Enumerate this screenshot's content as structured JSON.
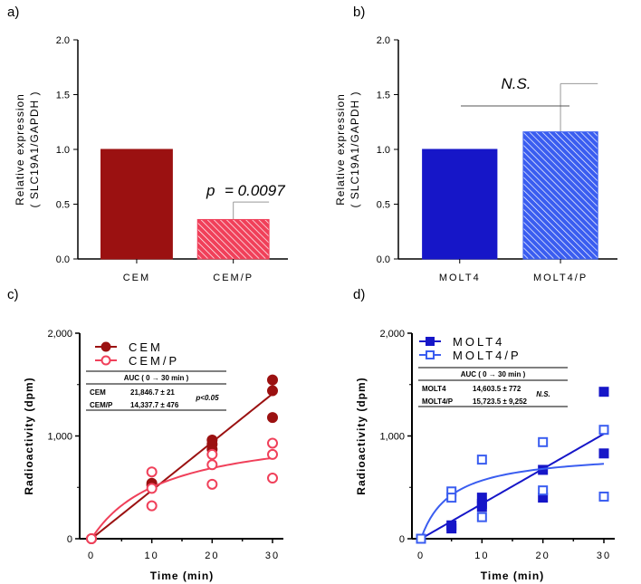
{
  "chart_data": [
    {
      "panel": "a)",
      "type": "bar",
      "categories": [
        "CEM",
        "CEM/P"
      ],
      "values": [
        1.0,
        0.36
      ],
      "errors": [
        0,
        0.52
      ],
      "colors": [
        "#9b1111",
        "#f0405a"
      ],
      "hatched": [
        false,
        true
      ],
      "ylabel": "Relative expression",
      "ylabel2": "( SLC19A1/GAPDH )",
      "ylim": [
        0,
        2.0
      ],
      "yticks": [
        "0.0",
        "0.5",
        "1.0",
        "1.5",
        "2.0"
      ],
      "annotation_p": "p",
      "annotation": "= 0.0097"
    },
    {
      "panel": "b)",
      "type": "bar",
      "categories": [
        "MOLT4",
        "MOLT4/P"
      ],
      "values": [
        1.0,
        1.16
      ],
      "errors": [
        0,
        1.6
      ],
      "colors": [
        "#1616c8",
        "#3a5df0"
      ],
      "hatched": [
        false,
        true
      ],
      "ylabel": "Relative expression",
      "ylabel2": "( SLC19A1/GAPDH )",
      "ylim": [
        0,
        2.0
      ],
      "yticks": [
        "0.0",
        "0.5",
        "1.0",
        "1.5",
        "2.0"
      ],
      "annotation": "N.S."
    },
    {
      "panel": "c)",
      "type": "scatter",
      "xlabel": "Time (min)",
      "ylabel": "Radioactivity (dpm)",
      "xlim": [
        0,
        30
      ],
      "ylim": [
        0,
        2000
      ],
      "xticks": [
        "0",
        "10",
        "20",
        "30"
      ],
      "yticks": [
        "0",
        "1,000",
        "2,000"
      ],
      "series": [
        {
          "name": "CEM",
          "color": "#9b1111",
          "filled": true,
          "marker": "circle",
          "fit": {
            "kind": "linear",
            "slope": 47
          },
          "points": [
            [
              0,
              0
            ],
            [
              10,
              540
            ],
            [
              10,
              520
            ],
            [
              20,
              960
            ],
            [
              20,
              920
            ],
            [
              20,
              870
            ],
            [
              30,
              1545
            ],
            [
              30,
              1440
            ],
            [
              30,
              1180
            ]
          ]
        },
        {
          "name": "CEM/P",
          "color": "#f0405a",
          "filled": false,
          "marker": "circle",
          "fit": {
            "kind": "hyperbolic",
            "bmax": 1100,
            "k": 12
          },
          "points": [
            [
              0,
              0
            ],
            [
              10,
              650
            ],
            [
              10,
              490
            ],
            [
              10,
              320
            ],
            [
              20,
              820
            ],
            [
              20,
              720
            ],
            [
              20,
              530
            ],
            [
              30,
              930
            ],
            [
              30,
              820
            ],
            [
              30,
              590
            ]
          ]
        }
      ],
      "table": {
        "header": "AUC ( 0 → 30 min )",
        "rows": [
          [
            "CEM",
            "21,846.7 ± 21"
          ],
          [
            "CEM/P",
            "14,337.7 ± 476"
          ]
        ],
        "stat": "p<0.05"
      }
    },
    {
      "panel": "d)",
      "type": "scatter",
      "xlabel": "Time (min)",
      "ylabel": "Radioactivity (dpm)",
      "xlim": [
        0,
        30
      ],
      "ylim": [
        0,
        2000
      ],
      "xticks": [
        "0",
        "10",
        "20",
        "30"
      ],
      "yticks": [
        "0",
        "1,000",
        "2,000"
      ],
      "series": [
        {
          "name": "MOLT4",
          "color": "#1616c8",
          "filled": true,
          "marker": "square",
          "fit": {
            "kind": "linear",
            "slope": 34
          },
          "points": [
            [
              0,
              0
            ],
            [
              5,
              130
            ],
            [
              5,
              100
            ],
            [
              10,
              400
            ],
            [
              10,
              340
            ],
            [
              10,
              310
            ],
            [
              20,
              670
            ],
            [
              20,
              400
            ],
            [
              30,
              1430
            ],
            [
              30,
              830
            ]
          ]
        },
        {
          "name": "MOLT4/P",
          "color": "#3a5df0",
          "filled": false,
          "marker": "square",
          "fit": {
            "kind": "hyperbolic",
            "bmax": 850,
            "k": 5
          },
          "points": [
            [
              0,
              0
            ],
            [
              5,
              460
            ],
            [
              5,
              400
            ],
            [
              10,
              770
            ],
            [
              10,
              210
            ],
            [
              20,
              940
            ],
            [
              20,
              470
            ],
            [
              30,
              1060
            ],
            [
              30,
              410
            ]
          ]
        }
      ],
      "table": {
        "header": "AUC ( 0 → 30 min )",
        "rows": [
          [
            "MOLT4",
            "14,603.5 ± 772"
          ],
          [
            "MOLT4/P",
            "15,723.5 ± 9,252"
          ]
        ],
        "stat": "N.S."
      }
    }
  ]
}
